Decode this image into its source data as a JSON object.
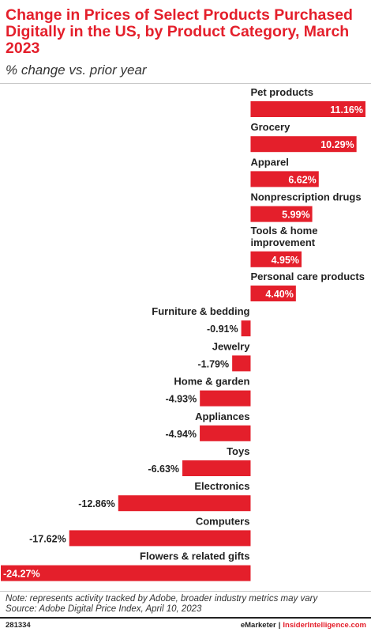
{
  "title": "Change in Prices of Select Products Purchased Digitally in the US, by Product Category, March 2023",
  "subtitle": "% change vs. prior year",
  "chart_data": {
    "type": "bar",
    "orientation": "horizontal",
    "categories": [
      "Pet products",
      "Grocery",
      "Apparel",
      "Nonprescription drugs",
      "Tools & home improvement",
      "Personal care products",
      "Furniture & bedding",
      "Jewelry",
      "Home & garden",
      "Appliances",
      "Toys",
      "Electronics",
      "Computers",
      "Flowers & related gifts"
    ],
    "values": [
      11.16,
      10.29,
      6.62,
      5.99,
      4.95,
      4.4,
      -0.91,
      -1.79,
      -4.93,
      -4.94,
      -6.63,
      -12.86,
      -17.62,
      -24.27
    ],
    "labels": [
      "11.16%",
      "10.29%",
      "6.62%",
      "5.99%",
      "4.95%",
      "4.40%",
      "-0.91%",
      "-1.79%",
      "-4.93%",
      "-4.94%",
      "-6.63%",
      "-12.86%",
      "-17.62%",
      "-24.27%"
    ],
    "bar_color": "#e41f2b",
    "xlim": [
      -24.27,
      11.16
    ],
    "grid": false,
    "legend": "none"
  },
  "notes": {
    "note": "Note: represents activity tracked by Adobe, broader industry metrics may vary",
    "source": "Source: Adobe Digital Price Index, April 10, 2023"
  },
  "footer": {
    "chart_id": "281334",
    "brand_emarketer": "eMarketer",
    "separator": "|",
    "brand_insider": "InsiderIntelligence.com"
  }
}
